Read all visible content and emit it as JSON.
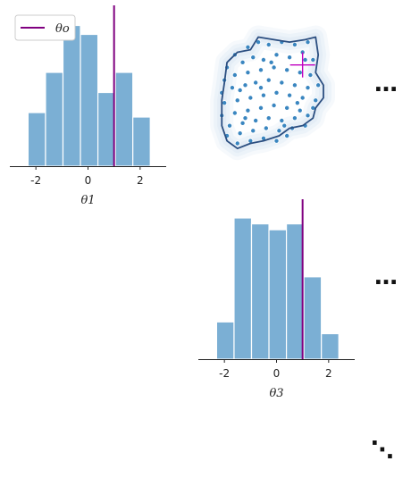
{
  "chart_data": [
    {
      "type": "bar",
      "panel": "marginal-theta1",
      "bin_edges": [
        -2.3,
        -1.63,
        -0.96,
        -0.29,
        0.38,
        1.05,
        1.72,
        2.39
      ],
      "values": [
        0.24,
        0.42,
        0.63,
        0.59,
        0.33,
        0.42,
        0.22
      ],
      "xlim": [
        -3,
        3
      ],
      "xticks": [
        -2,
        0,
        2
      ],
      "xtick_labels": [
        "-2",
        "0",
        "2"
      ],
      "xlabel": "θ1",
      "ylim": [
        0,
        0.68
      ],
      "reference_line": {
        "x": 1.0,
        "color": "#800080"
      },
      "legend": {
        "label": "θo",
        "color": "#800080",
        "placement": "top-left"
      }
    },
    {
      "type": "scatter",
      "panel": "pairwise-theta1-theta3",
      "xlim": [
        -3,
        3
      ],
      "ylim": [
        -3,
        3
      ],
      "point_color": "#3a86c0",
      "contour_color": "#2b4e80",
      "reference_point": {
        "x": 1.0,
        "y": 1.0,
        "color": "#c000c0"
      },
      "points": [
        [
          -1.6,
          1.4
        ],
        [
          -1.1,
          1.7
        ],
        [
          -0.7,
          1.9
        ],
        [
          -0.3,
          1.8
        ],
        [
          0.2,
          1.9
        ],
        [
          0.7,
          1.8
        ],
        [
          1.2,
          1.9
        ],
        [
          -1.9,
          0.9
        ],
        [
          -1.3,
          1.1
        ],
        [
          -0.9,
          1.3
        ],
        [
          -0.5,
          1.2
        ],
        [
          0.0,
          1.4
        ],
        [
          0.5,
          1.3
        ],
        [
          1.0,
          1.5
        ],
        [
          1.4,
          1.2
        ],
        [
          -2.0,
          0.4
        ],
        [
          -1.6,
          0.6
        ],
        [
          -1.1,
          0.7
        ],
        [
          -0.6,
          0.8
        ],
        [
          -0.1,
          0.9
        ],
        [
          0.4,
          0.8
        ],
        [
          0.9,
          0.7
        ],
        [
          1.3,
          0.6
        ],
        [
          -2.1,
          -0.1
        ],
        [
          -1.7,
          0.1
        ],
        [
          -1.2,
          0.2
        ],
        [
          -0.8,
          0.3
        ],
        [
          -0.3,
          0.4
        ],
        [
          0.2,
          0.3
        ],
        [
          0.7,
          0.2
        ],
        [
          1.2,
          0.1
        ],
        [
          1.6,
          0.2
        ],
        [
          -2.0,
          -0.5
        ],
        [
          -1.5,
          -0.4
        ],
        [
          -1.0,
          -0.3
        ],
        [
          -0.5,
          -0.2
        ],
        [
          0.0,
          -0.1
        ],
        [
          0.5,
          -0.2
        ],
        [
          1.0,
          -0.3
        ],
        [
          1.5,
          -0.4
        ],
        [
          -2.1,
          -1.0
        ],
        [
          -1.6,
          -0.9
        ],
        [
          -1.1,
          -0.8
        ],
        [
          -0.6,
          -0.7
        ],
        [
          -0.1,
          -0.6
        ],
        [
          0.4,
          -0.7
        ],
        [
          0.9,
          -0.8
        ],
        [
          1.4,
          -0.7
        ],
        [
          -1.8,
          -1.4
        ],
        [
          -1.3,
          -1.3
        ],
        [
          -0.8,
          -1.2
        ],
        [
          -0.3,
          -1.1
        ],
        [
          0.2,
          -1.2
        ],
        [
          0.7,
          -1.1
        ],
        [
          1.2,
          -1.0
        ],
        [
          -1.9,
          -1.8
        ],
        [
          -1.4,
          -1.7
        ],
        [
          -0.9,
          -1.6
        ],
        [
          -0.4,
          -1.5
        ],
        [
          0.1,
          -1.6
        ],
        [
          0.6,
          -1.5
        ],
        [
          1.1,
          -1.4
        ],
        [
          -1.5,
          -2.1
        ],
        [
          -1.0,
          -2.0
        ],
        [
          -0.5,
          -1.9
        ],
        [
          0.0,
          -2.0
        ],
        [
          0.4,
          -1.8
        ],
        [
          -1.4,
          0.0
        ],
        [
          -0.6,
          0.1
        ],
        [
          0.8,
          -0.5
        ],
        [
          -0.2,
          1.1
        ],
        [
          1.1,
          1.2
        ],
        [
          -1.2,
          -1.1
        ],
        [
          0.3,
          -1.4
        ]
      ],
      "contour": [
        [
          -1.9,
          1.1
        ],
        [
          -1.5,
          1.5
        ],
        [
          -1.0,
          1.6
        ],
        [
          -0.7,
          2.1
        ],
        [
          -0.1,
          2.0
        ],
        [
          0.5,
          1.9
        ],
        [
          1.1,
          2.0
        ],
        [
          1.5,
          2.1
        ],
        [
          1.6,
          1.4
        ],
        [
          1.5,
          0.7
        ],
        [
          1.8,
          0.2
        ],
        [
          1.8,
          -0.3
        ],
        [
          1.5,
          -0.7
        ],
        [
          1.4,
          -1.1
        ],
        [
          1.0,
          -1.4
        ],
        [
          0.5,
          -1.5
        ],
        [
          0.1,
          -1.8
        ],
        [
          -0.5,
          -2.0
        ],
        [
          -1.0,
          -2.1
        ],
        [
          -1.5,
          -2.3
        ],
        [
          -1.9,
          -2.0
        ],
        [
          -2.1,
          -1.4
        ],
        [
          -2.1,
          -0.4
        ],
        [
          -2.0,
          0.3
        ],
        [
          -1.9,
          1.1
        ]
      ]
    },
    {
      "type": "bar",
      "panel": "marginal-theta3",
      "bin_edges": [
        -2.3,
        -1.63,
        -0.96,
        -0.29,
        0.38,
        1.05,
        1.72,
        2.39
      ],
      "values": [
        0.19,
        0.72,
        0.69,
        0.66,
        0.69,
        0.42,
        0.13
      ],
      "xlim": [
        -3,
        3
      ],
      "xticks": [
        -2,
        0,
        2
      ],
      "xtick_labels": [
        "-2",
        "0",
        "2"
      ],
      "xlabel": "θ3",
      "ylim": [
        0,
        0.77
      ],
      "reference_line": {
        "x": 1.0,
        "color": "#800080"
      }
    }
  ],
  "colors": {
    "bar_fill": "#7bafd4",
    "bar_edge": "#ffffff",
    "reference": "#800080",
    "halo": "#dbe7f4"
  },
  "ellipsis": {
    "row1": "…",
    "row2": "…",
    "diag": "⋱"
  }
}
